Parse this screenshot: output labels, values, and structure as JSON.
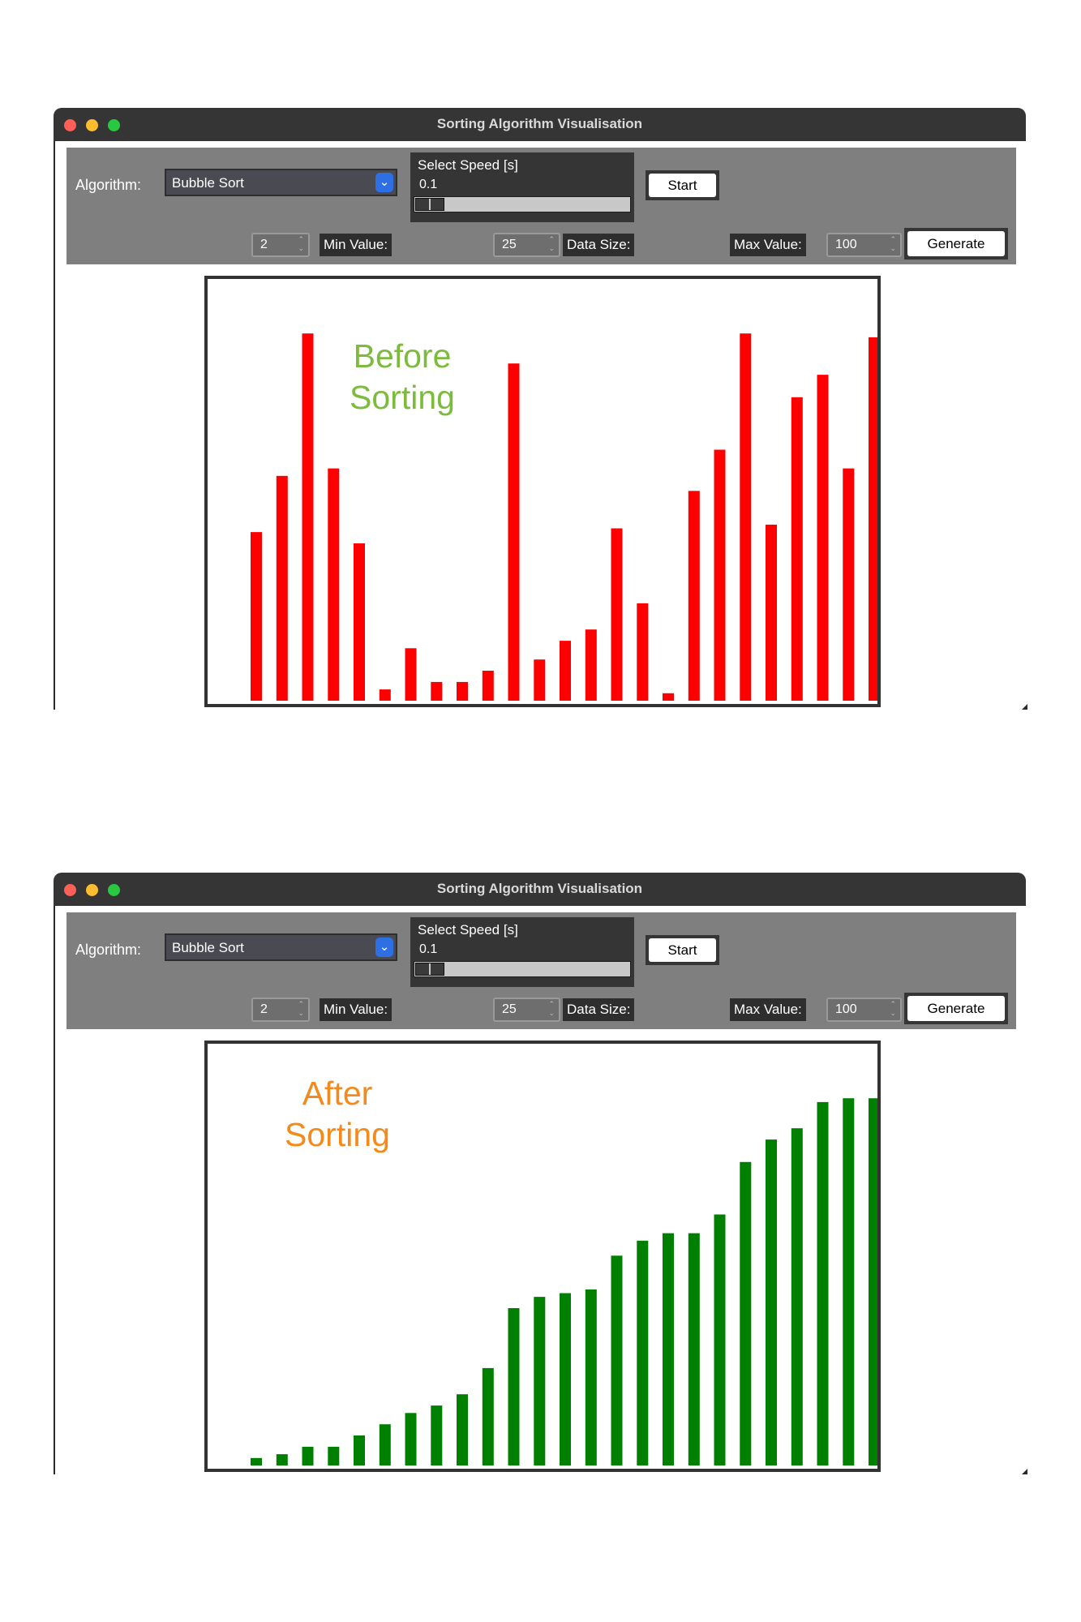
{
  "windows": [
    {
      "id": "before",
      "title": "Sorting Algorithm Visualisation",
      "algorithm_label": "Algorithm:",
      "algorithm_value": "Bubble Sort",
      "speed_label": "Select Speed [s]",
      "speed_value": "0.1",
      "speed_slider_fraction": 0.0,
      "start_label": "Start",
      "min_value": "2",
      "min_label": "Min Value:",
      "data_size": "25",
      "data_size_label": "Data Size:",
      "max_label": "Max Value:",
      "max_value": "100",
      "generate_label": "Generate",
      "caption_line1": "Before",
      "caption_line2": "Sorting",
      "caption_color": "#7cbb3b",
      "bar_color": "#ff0000",
      "chart_data": {
        "type": "bar",
        "ylim": [
          0,
          100
        ],
        "values": [
          45,
          60,
          98,
          62,
          42,
          3,
          14,
          5,
          5,
          8,
          90,
          11,
          16,
          19,
          46,
          26,
          2,
          56,
          67,
          98,
          47,
          81,
          87,
          62,
          97
        ]
      }
    },
    {
      "id": "after",
      "title": "Sorting Algorithm Visualisation",
      "algorithm_label": "Algorithm:",
      "algorithm_value": "Bubble Sort",
      "speed_label": "Select Speed [s]",
      "speed_value": "0.1",
      "speed_slider_fraction": 0.0,
      "start_label": "Start",
      "min_value": "2",
      "min_label": "Min Value:",
      "data_size": "25",
      "data_size_label": "Data Size:",
      "max_label": "Max Value:",
      "max_value": "100",
      "generate_label": "Generate",
      "caption_line1": "After",
      "caption_line2": "Sorting",
      "caption_color": "#f28a1c",
      "bar_color": "#008000",
      "chart_data": {
        "type": "bar",
        "ylim": [
          0,
          100
        ],
        "values": [
          2,
          3,
          5,
          5,
          8,
          11,
          14,
          16,
          19,
          26,
          42,
          45,
          46,
          47,
          56,
          60,
          62,
          62,
          67,
          81,
          87,
          90,
          97,
          98,
          98
        ]
      }
    }
  ],
  "icons": {
    "select_arrow": "chevron-down-icon",
    "spin_arrows": "up-down-arrows-icon"
  }
}
